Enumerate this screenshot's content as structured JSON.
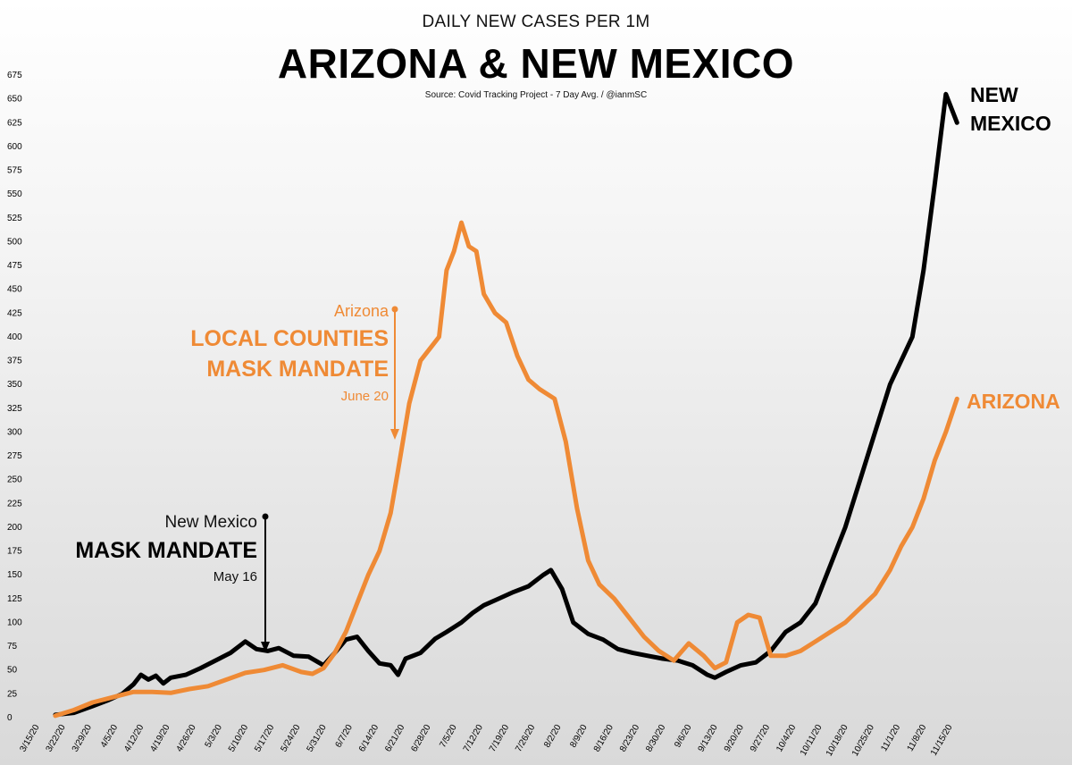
{
  "header": {
    "subtitle": "DAILY NEW CASES PER 1M",
    "title": "ARIZONA & NEW MEXICO",
    "source": "Source: Covid Tracking Project - 7 Day Avg. / @ianmSC"
  },
  "colors": {
    "new_mexico": "#000000",
    "arizona": "#ef8a35"
  },
  "annotations": {
    "nm": {
      "state": "New Mexico",
      "label": "MASK MANDATE",
      "date": "May 16"
    },
    "az": {
      "state": "Arizona",
      "label_line1": "LOCAL COUNTIES",
      "label_line2": "MASK MANDATE",
      "date": "June 20"
    }
  },
  "series_labels": {
    "nm_line1": "NEW",
    "nm_line2": "MEXICO",
    "az": "ARIZONA"
  },
  "chart_data": {
    "type": "line",
    "title": "ARIZONA & NEW MEXICO",
    "subtitle": "DAILY NEW CASES PER 1M",
    "ylim": [
      0,
      675
    ],
    "yticks": [
      0,
      25,
      50,
      75,
      100,
      125,
      150,
      175,
      200,
      225,
      250,
      275,
      300,
      325,
      350,
      375,
      400,
      425,
      450,
      475,
      500,
      525,
      550,
      575,
      600,
      625,
      650,
      675
    ],
    "x_tick_labels": [
      "3/15/20",
      "3/22/20",
      "3/29/20",
      "4/5/20",
      "4/12/20",
      "4/19/20",
      "4/26/20",
      "5/3/20",
      "5/10/20",
      "5/17/20",
      "5/24/20",
      "5/31/20",
      "6/7/20",
      "6/14/20",
      "6/21/20",
      "6/28/20",
      "7/5/20",
      "7/12/20",
      "7/19/20",
      "7/26/20",
      "8/2/20",
      "8/9/20",
      "8/16/20",
      "8/23/20",
      "8/30/20",
      "9/6/20",
      "9/13/20",
      "9/20/20",
      "9/27/20",
      "10/4/20",
      "10/11/20",
      "10/18/20",
      "10/25/20",
      "11/1/20",
      "11/8/20",
      "11/15/20"
    ],
    "series": [
      {
        "name": "NEW MEXICO",
        "color": "#000000",
        "points": [
          [
            "3/20/20",
            3
          ],
          [
            "3/25/20",
            5
          ],
          [
            "3/30/20",
            12
          ],
          [
            "4/3/20",
            18
          ],
          [
            "4/7/20",
            25
          ],
          [
            "4/10/20",
            35
          ],
          [
            "4/12/20",
            45
          ],
          [
            "4/14/20",
            40
          ],
          [
            "4/16/20",
            44
          ],
          [
            "4/18/20",
            36
          ],
          [
            "4/20/20",
            42
          ],
          [
            "4/24/20",
            45
          ],
          [
            "4/28/20",
            52
          ],
          [
            "5/3/20",
            62
          ],
          [
            "5/6/20",
            68
          ],
          [
            "5/10/20",
            80
          ],
          [
            "5/13/20",
            72
          ],
          [
            "5/16/20",
            70
          ],
          [
            "5/19/20",
            73
          ],
          [
            "5/23/20",
            65
          ],
          [
            "5/27/20",
            64
          ],
          [
            "5/31/20",
            55
          ],
          [
            "6/3/20",
            68
          ],
          [
            "6/6/20",
            82
          ],
          [
            "6/9/20",
            85
          ],
          [
            "6/12/20",
            70
          ],
          [
            "6/15/20",
            57
          ],
          [
            "6/18/20",
            55
          ],
          [
            "6/20/20",
            45
          ],
          [
            "6/22/20",
            62
          ],
          [
            "6/26/20",
            68
          ],
          [
            "6/30/20",
            83
          ],
          [
            "7/3/20",
            90
          ],
          [
            "7/7/20",
            100
          ],
          [
            "7/10/20",
            110
          ],
          [
            "7/13/20",
            118
          ],
          [
            "7/17/20",
            125
          ],
          [
            "7/21/20",
            132
          ],
          [
            "7/25/20",
            138
          ],
          [
            "7/29/20",
            150
          ],
          [
            "7/31/20",
            155
          ],
          [
            "8/3/20",
            135
          ],
          [
            "8/6/20",
            100
          ],
          [
            "8/10/20",
            88
          ],
          [
            "8/14/20",
            82
          ],
          [
            "8/18/20",
            72
          ],
          [
            "8/22/20",
            68
          ],
          [
            "8/26/20",
            65
          ],
          [
            "8/30/20",
            62
          ],
          [
            "9/3/20",
            60
          ],
          [
            "9/7/20",
            55
          ],
          [
            "9/11/20",
            45
          ],
          [
            "9/13/20",
            42
          ],
          [
            "9/16/20",
            48
          ],
          [
            "9/20/20",
            55
          ],
          [
            "9/24/20",
            58
          ],
          [
            "9/28/20",
            70
          ],
          [
            "10/2/20",
            90
          ],
          [
            "10/6/20",
            100
          ],
          [
            "10/10/20",
            120
          ],
          [
            "10/14/20",
            160
          ],
          [
            "10/18/20",
            200
          ],
          [
            "10/22/20",
            250
          ],
          [
            "10/26/20",
            300
          ],
          [
            "10/30/20",
            350
          ],
          [
            "11/2/20",
            375
          ],
          [
            "11/5/20",
            400
          ],
          [
            "11/8/20",
            470
          ],
          [
            "11/11/20",
            560
          ],
          [
            "11/14/20",
            655
          ],
          [
            "11/17/20",
            625
          ]
        ]
      },
      {
        "name": "ARIZONA",
        "color": "#ef8a35",
        "points": [
          [
            "3/20/20",
            2
          ],
          [
            "3/25/20",
            8
          ],
          [
            "3/30/20",
            16
          ],
          [
            "4/5/20",
            22
          ],
          [
            "4/10/20",
            27
          ],
          [
            "4/15/20",
            27
          ],
          [
            "4/20/20",
            26
          ],
          [
            "4/25/20",
            30
          ],
          [
            "4/30/20",
            33
          ],
          [
            "5/5/20",
            40
          ],
          [
            "5/10/20",
            47
          ],
          [
            "5/15/20",
            50
          ],
          [
            "5/20/20",
            55
          ],
          [
            "5/25/20",
            48
          ],
          [
            "5/28/20",
            46
          ],
          [
            "5/31/20",
            52
          ],
          [
            "6/3/20",
            68
          ],
          [
            "6/6/20",
            90
          ],
          [
            "6/9/20",
            120
          ],
          [
            "6/12/20",
            150
          ],
          [
            "6/15/20",
            175
          ],
          [
            "6/18/20",
            215
          ],
          [
            "6/20/20",
            260
          ],
          [
            "6/23/20",
            330
          ],
          [
            "6/26/20",
            375
          ],
          [
            "6/29/20",
            390
          ],
          [
            "7/1/20",
            400
          ],
          [
            "7/3/20",
            470
          ],
          [
            "7/5/20",
            490
          ],
          [
            "7/7/20",
            520
          ],
          [
            "7/9/20",
            495
          ],
          [
            "7/11/20",
            490
          ],
          [
            "7/13/20",
            445
          ],
          [
            "7/16/20",
            425
          ],
          [
            "7/19/20",
            415
          ],
          [
            "7/22/20",
            380
          ],
          [
            "7/25/20",
            355
          ],
          [
            "7/28/20",
            345
          ],
          [
            "8/1/20",
            335
          ],
          [
            "8/4/20",
            290
          ],
          [
            "8/7/20",
            220
          ],
          [
            "8/10/20",
            165
          ],
          [
            "8/13/20",
            140
          ],
          [
            "8/17/20",
            125
          ],
          [
            "8/21/20",
            105
          ],
          [
            "8/25/20",
            85
          ],
          [
            "8/29/20",
            70
          ],
          [
            "9/2/20",
            60
          ],
          [
            "9/6/20",
            78
          ],
          [
            "9/10/20",
            65
          ],
          [
            "9/13/20",
            52
          ],
          [
            "9/16/20",
            58
          ],
          [
            "9/19/20",
            100
          ],
          [
            "9/22/20",
            108
          ],
          [
            "9/25/20",
            105
          ],
          [
            "9/28/20",
            65
          ],
          [
            "10/2/20",
            65
          ],
          [
            "10/6/20",
            70
          ],
          [
            "10/10/20",
            80
          ],
          [
            "10/14/20",
            90
          ],
          [
            "10/18/20",
            100
          ],
          [
            "10/22/20",
            115
          ],
          [
            "10/26/20",
            130
          ],
          [
            "10/30/20",
            155
          ],
          [
            "11/2/20",
            180
          ],
          [
            "11/5/20",
            200
          ],
          [
            "11/8/20",
            230
          ],
          [
            "11/11/20",
            270
          ],
          [
            "11/14/20",
            300
          ],
          [
            "11/17/20",
            335
          ]
        ]
      }
    ]
  }
}
